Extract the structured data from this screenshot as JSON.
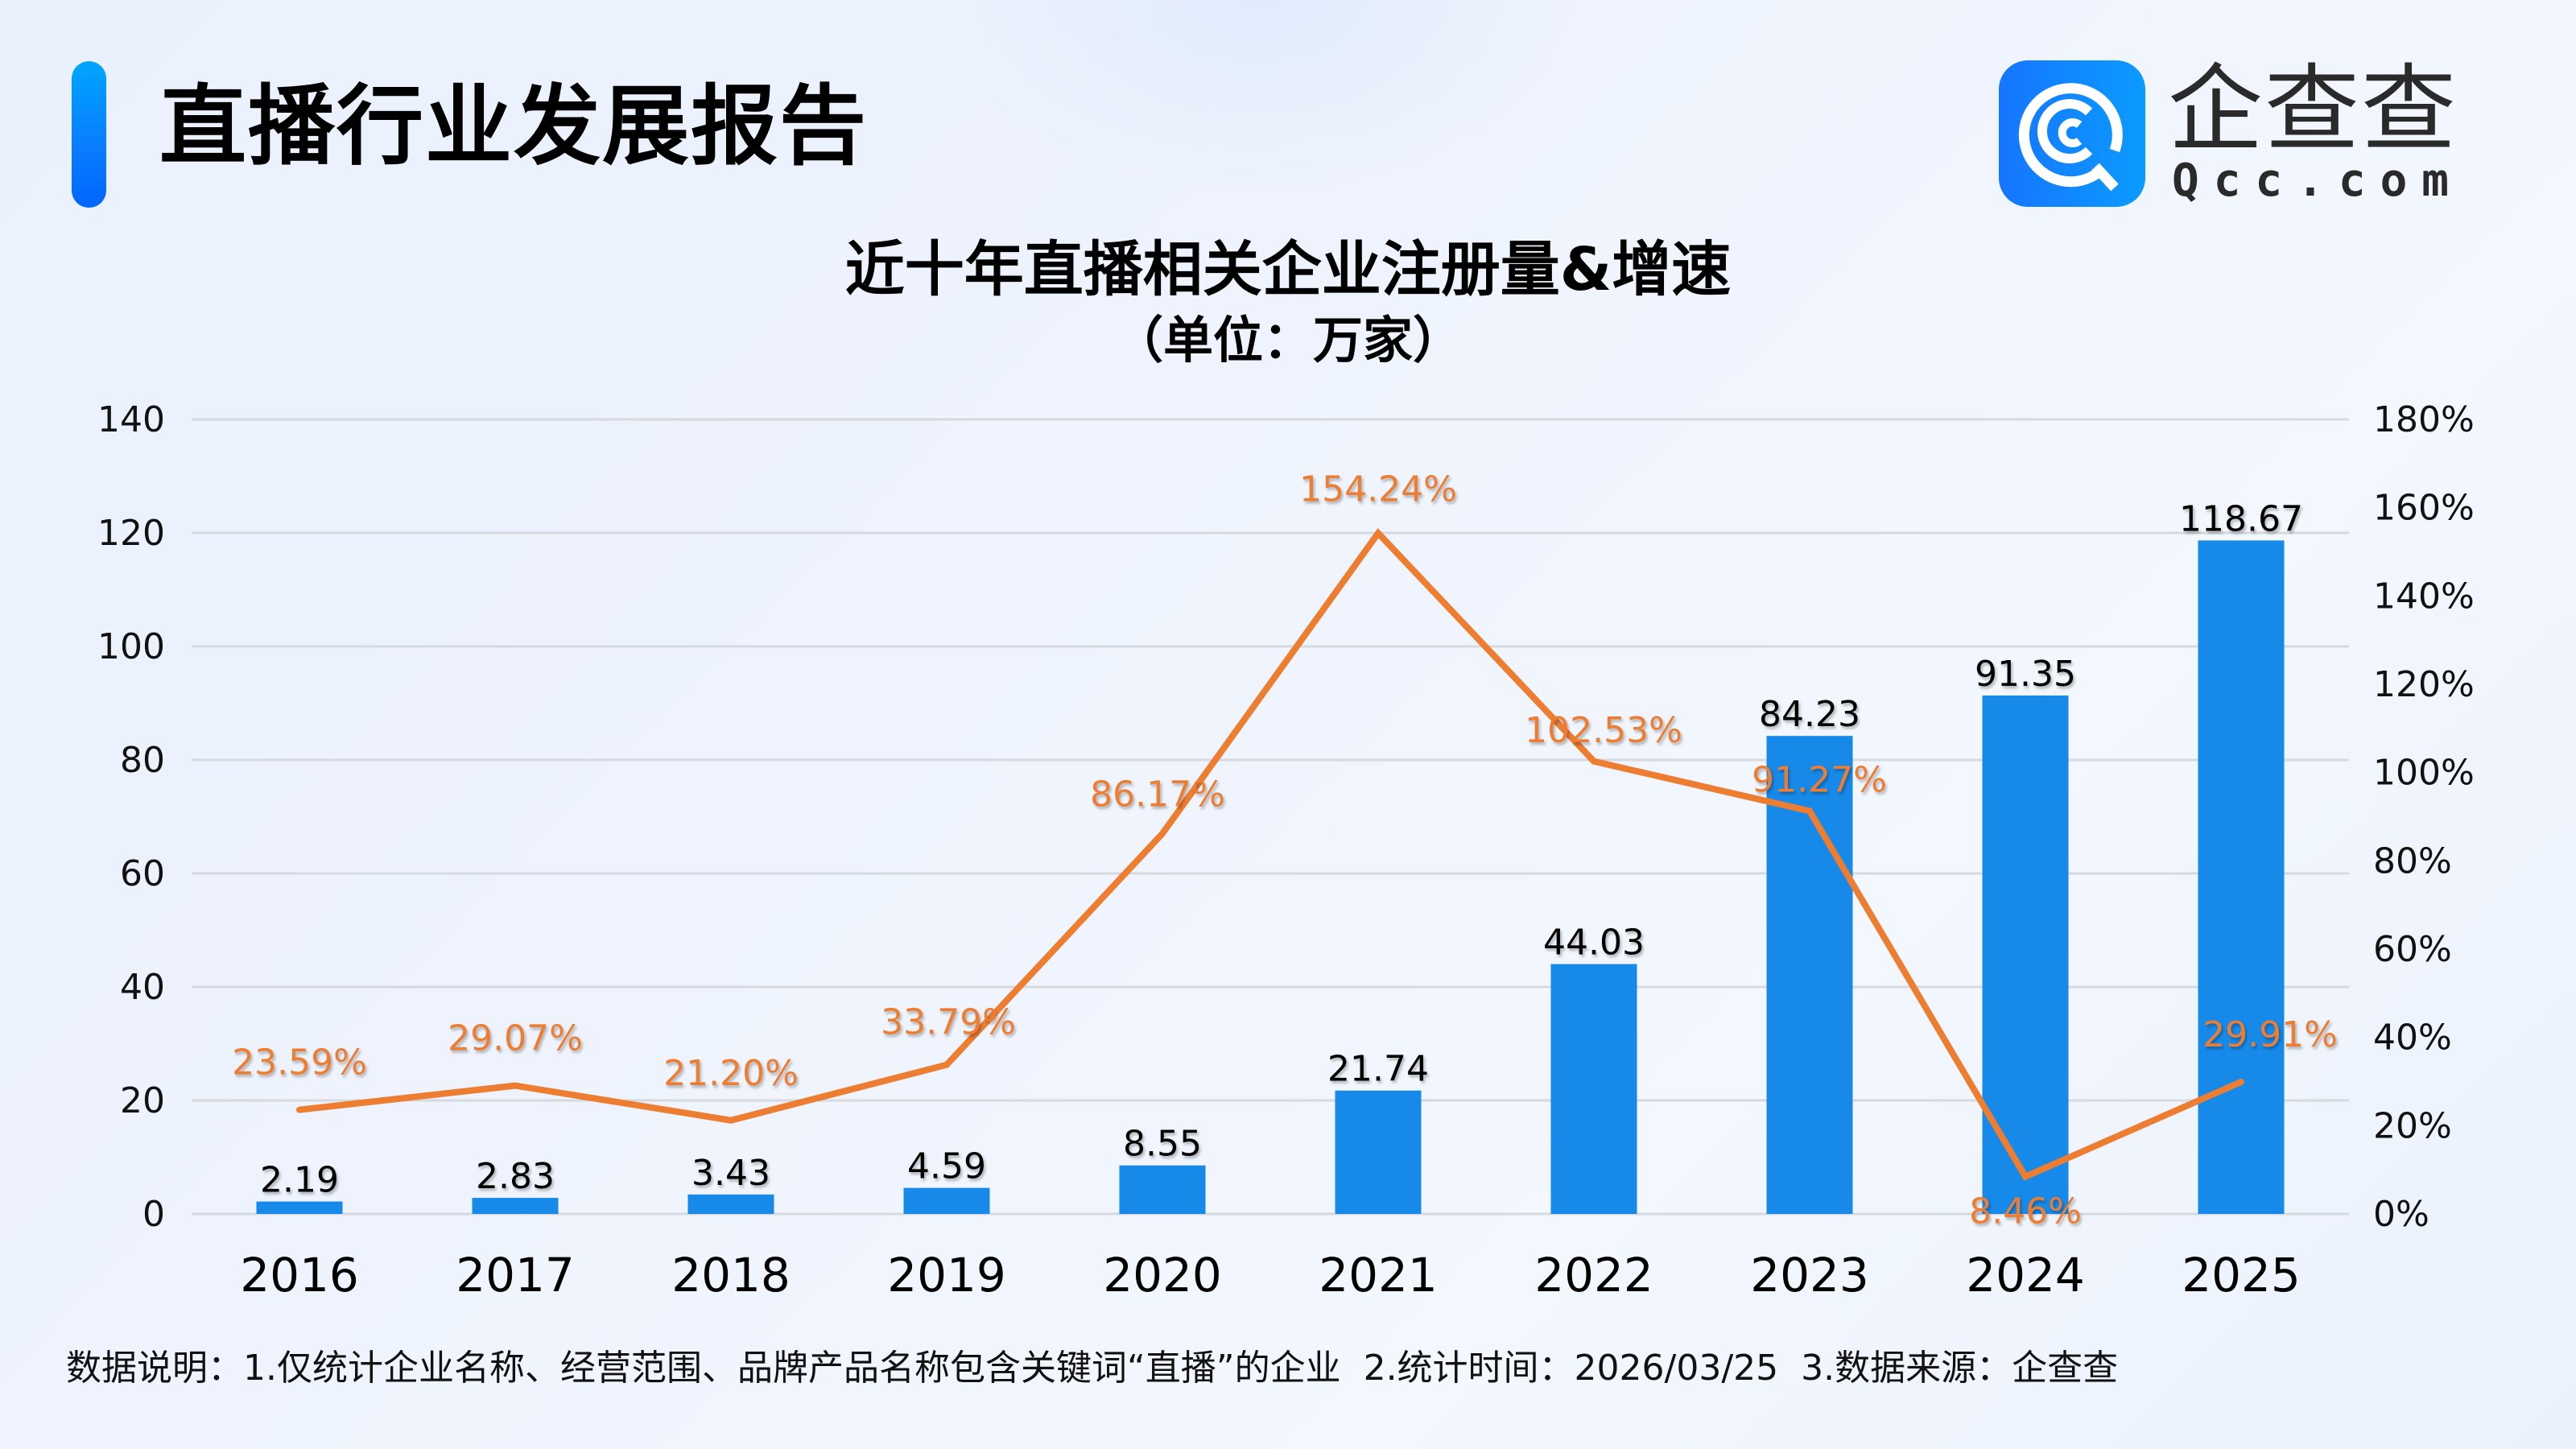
{
  "header": {
    "title": "直播行业发展报告",
    "logo": {
      "icon": "qcc-logo-icon",
      "name_cn": "企查查",
      "name_en": "Qcc.com",
      "colors": [
        "#1575ff",
        "#0c9bff"
      ]
    }
  },
  "chart": {
    "title": "近十年直播相关企业注册量&增速",
    "subtitle": "（单位：万家）"
  },
  "footer": {
    "label": "数据说明：",
    "note1": "1.仅统计企业名称、经营范围、品牌产品名称包含关键词“直播”的企业",
    "note2": "2.统计时间：2026/03/25",
    "note3": "3.数据来源：企查查"
  },
  "colors": {
    "bar": "#1789E8",
    "line": "#ED7D31",
    "grid": "#d6d9de",
    "accent": "#0a7cff"
  },
  "chart_data": {
    "type": "bar",
    "title": "近十年直播相关企业注册量&增速",
    "subtitle": "（单位：万家）",
    "categories": [
      "2016",
      "2017",
      "2018",
      "2019",
      "2020",
      "2021",
      "2022",
      "2023",
      "2024",
      "2025"
    ],
    "series": [
      {
        "name": "注册量（万家）",
        "type": "bar",
        "axis": "left",
        "values": [
          2.19,
          2.83,
          3.43,
          4.59,
          8.55,
          21.74,
          44.03,
          84.23,
          91.35,
          118.67
        ],
        "labels": [
          "2.19",
          "2.83",
          "3.43",
          "4.59",
          "8.55",
          "21.74",
          "44.03",
          "84.23",
          "91.35",
          "118.67"
        ]
      },
      {
        "name": "增速",
        "type": "line",
        "axis": "right",
        "values": [
          23.59,
          29.07,
          21.2,
          33.79,
          86.17,
          154.24,
          102.53,
          91.27,
          8.46,
          29.91
        ],
        "labels": [
          "23.59%",
          "29.07%",
          "21.20%",
          "33.79%",
          "86.17%",
          "154.24%",
          "102.53%",
          "91.27%",
          "8.46%",
          "29.91%"
        ]
      }
    ],
    "xlabel": "",
    "ylabel": "",
    "ylim": [
      0,
      140
    ],
    "yticks": [
      "0",
      "20",
      "40",
      "60",
      "80",
      "100",
      "120",
      "140"
    ],
    "y2lim": [
      0,
      180
    ],
    "y2ticks": [
      "0%",
      "20%",
      "40%",
      "60%",
      "80%",
      "100%",
      "120%",
      "140%",
      "160%",
      "180%"
    ],
    "grid": true,
    "legend": "none"
  }
}
